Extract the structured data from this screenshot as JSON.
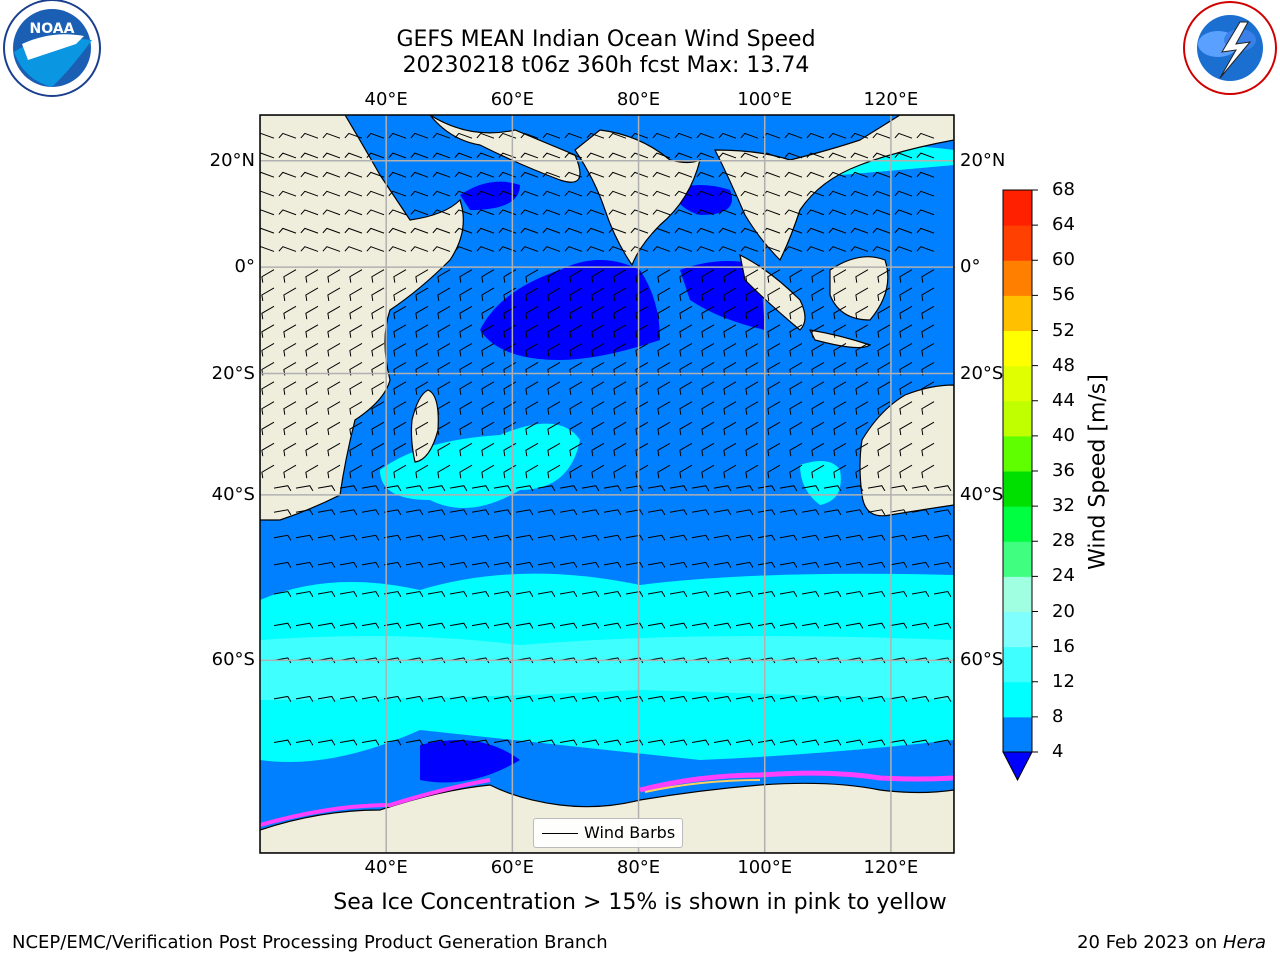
{
  "header": {
    "title_line1": "GEFS MEAN Indian Ocean Wind Speed",
    "title_line2": "20230218 t06z 360h fcst   Max: 13.74"
  },
  "axes": {
    "lon_ticks": [
      "40°E",
      "60°E",
      "80°E",
      "100°E",
      "120°E"
    ],
    "lon_values": [
      40,
      60,
      80,
      100,
      120
    ],
    "lat_ticks": [
      "20°N",
      "0°",
      "20°S",
      "40°S",
      "60°S"
    ],
    "lat_values": [
      20,
      0,
      -20,
      -40,
      -60
    ],
    "lon_range": [
      20,
      130
    ],
    "lat_range": [
      -74,
      28
    ]
  },
  "legend": {
    "label": "Wind Barbs"
  },
  "colorbar": {
    "title": "Wind Speed [m/s]",
    "levels": [
      "4",
      "8",
      "12",
      "16",
      "20",
      "24",
      "28",
      "32",
      "36",
      "40",
      "44",
      "48",
      "52",
      "56",
      "60",
      "64",
      "68"
    ],
    "colors": [
      "#0080ff",
      "#00ffff",
      "#40ffff",
      "#80ffff",
      "#a0ffe0",
      "#40ff80",
      "#00ff40",
      "#00e000",
      "#60ff00",
      "#c0ff00",
      "#e0ff00",
      "#ffff00",
      "#ffc000",
      "#ff8000",
      "#ff4000",
      "#ff2000"
    ],
    "extend_color": "#0000ff"
  },
  "notes": {
    "sea_ice": "Sea Ice Concentration > 15% is shown in pink to yellow"
  },
  "footer": {
    "left": "NCEP/EMC/Verification Post Processing Product Generation Branch",
    "right_prefix": "20 Feb 2023 on ",
    "right_host": "Hera"
  },
  "logos": {
    "left": "NOAA",
    "right": "NATIONAL WEATHER SERVICE"
  },
  "colors": {
    "land": "#efeedd",
    "ocean_base": "#0080ff",
    "strong_wind": "#00ffff",
    "weak_wind": "#0000ff",
    "grid": "#b0b0b0"
  }
}
